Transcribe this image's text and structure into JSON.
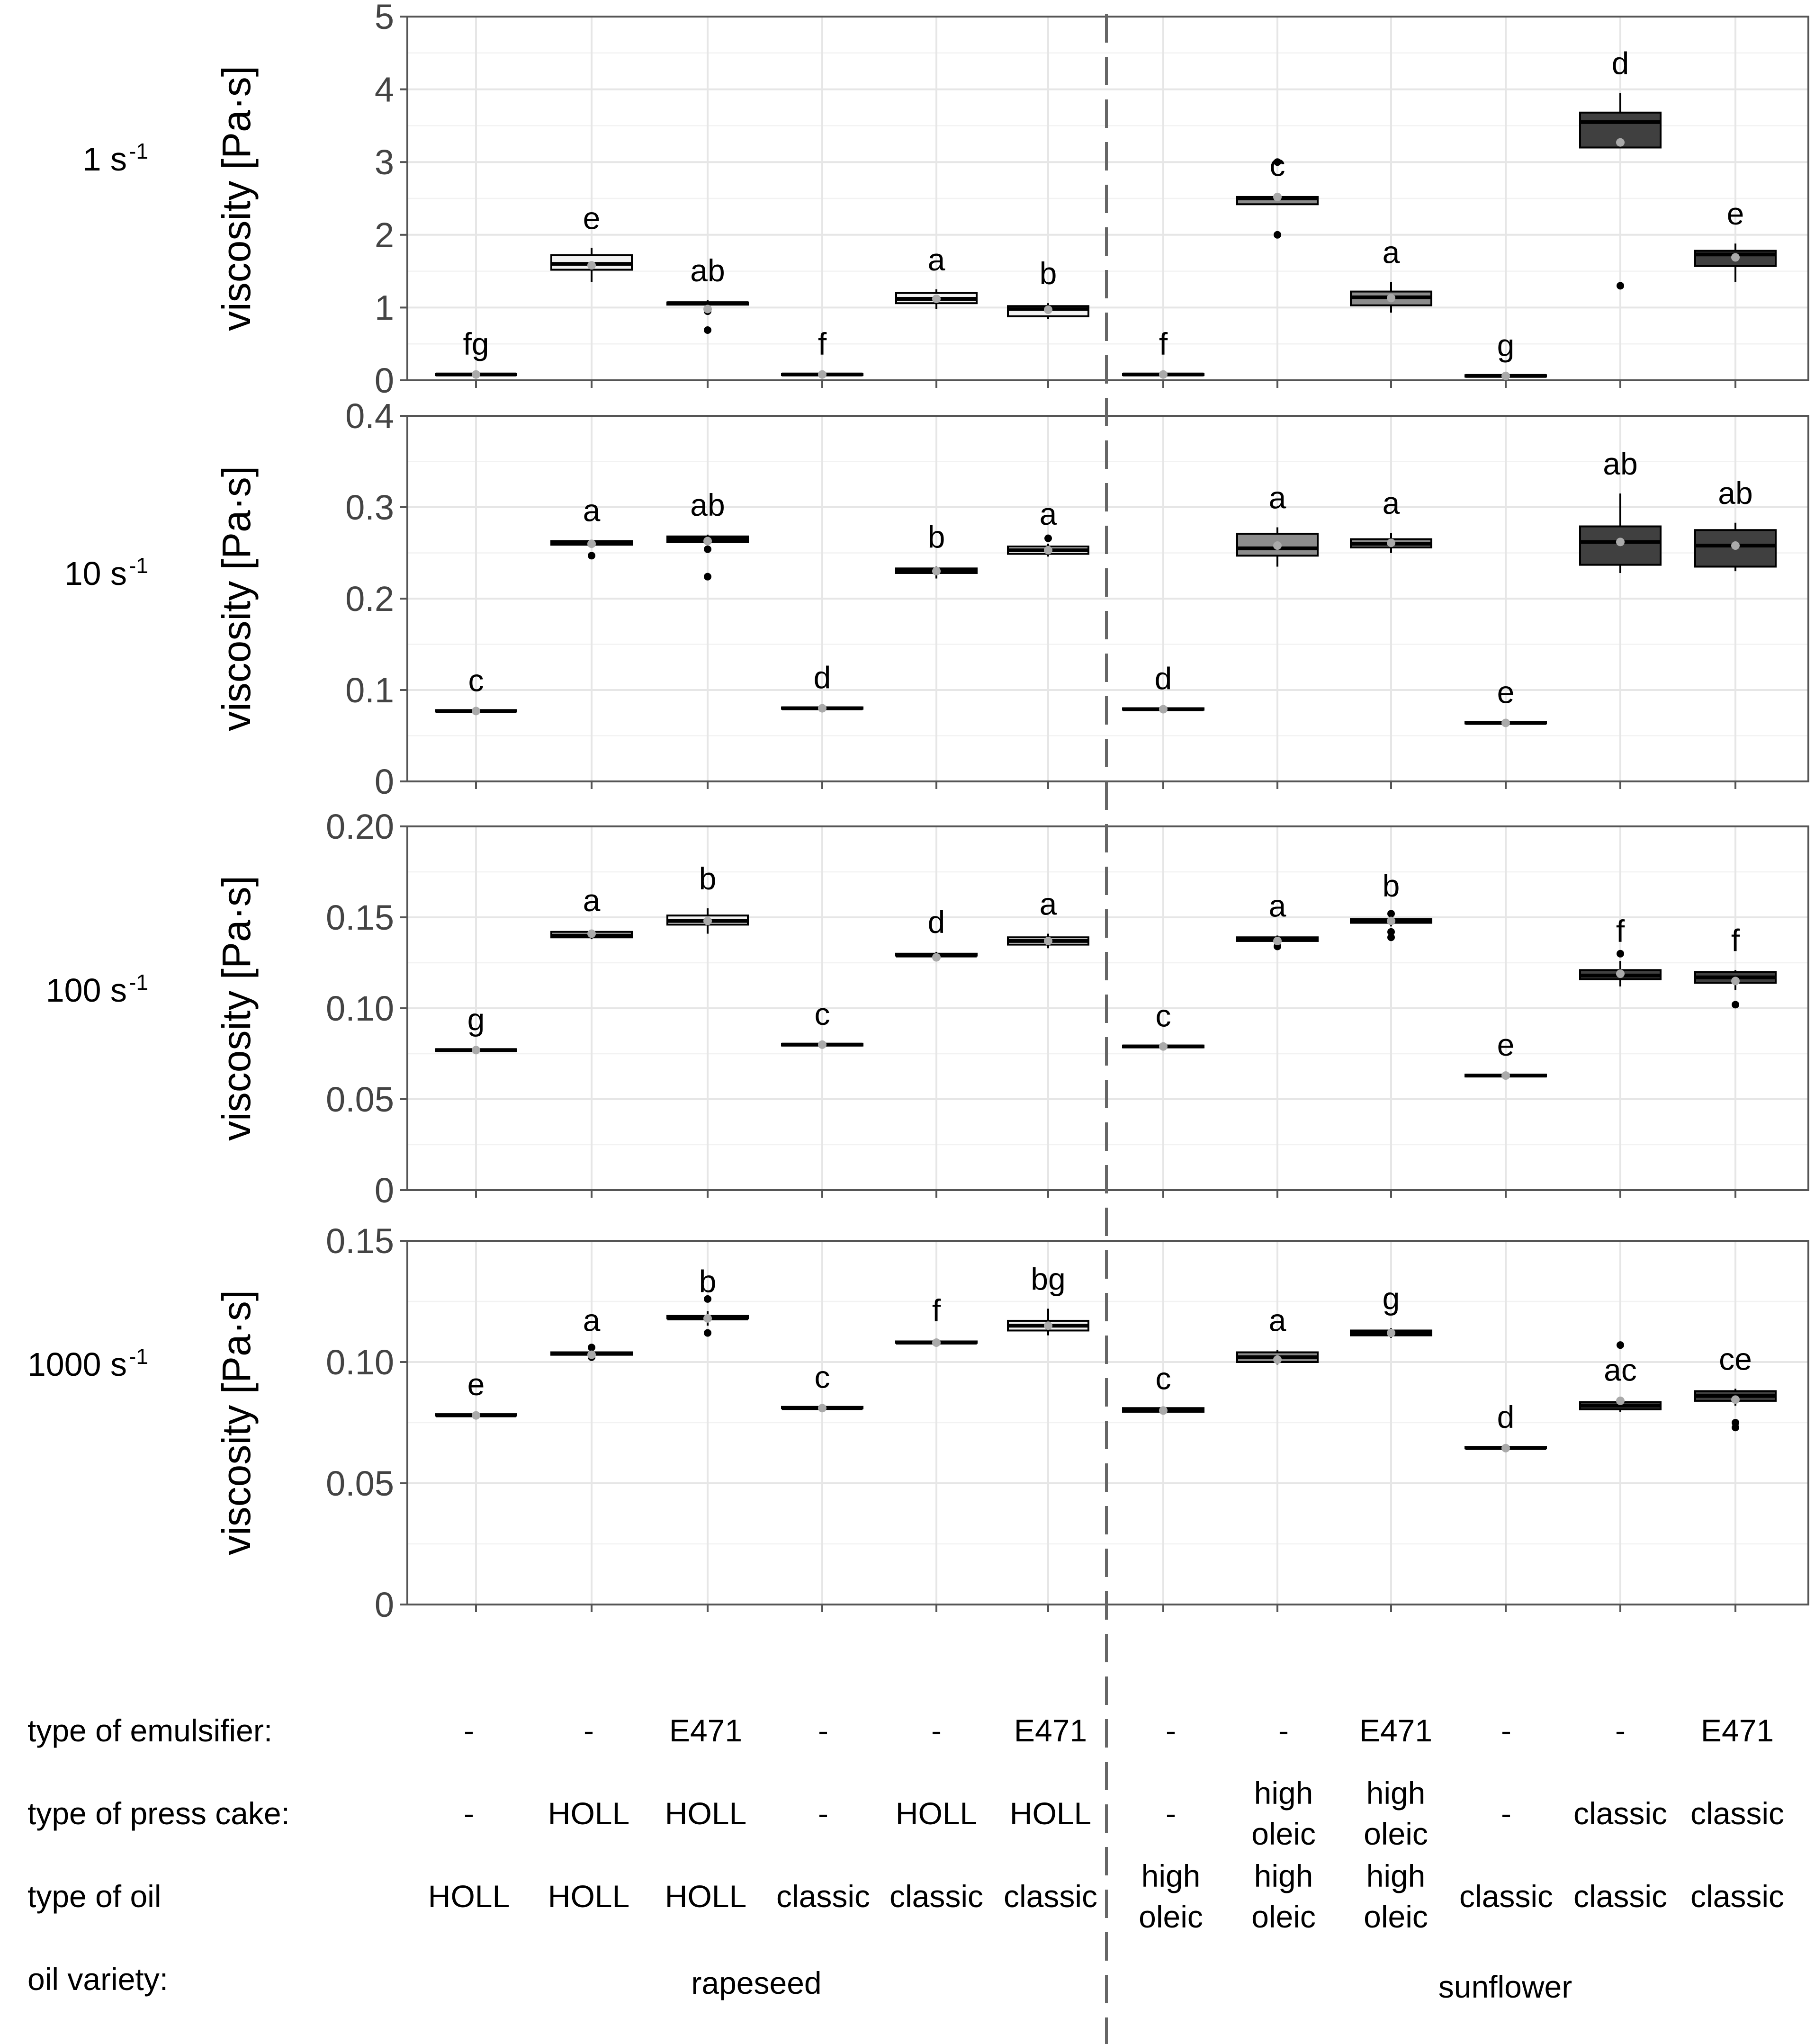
{
  "chart_data": {
    "type": "box",
    "ylabel": "viscosity [Pa·s]",
    "colors": {
      "rapeseed": "#f2f2f2",
      "sunflower_high_oleic": "#8c8c8c",
      "sunflower_classic": "#404040",
      "median_line": "#000000",
      "mean_point": "#aaaaaa"
    },
    "panels": [
      {
        "rate": "1 s",
        "rate_exp": "-1",
        "ylim": [
          0,
          5
        ],
        "yticks": [
          0,
          1,
          2,
          3,
          4,
          5
        ],
        "ytick_labels": [
          "0",
          "1",
          "2",
          "3",
          "4",
          "5"
        ],
        "groups": [
          {
            "q1": 0.08,
            "median": 0.08,
            "q3": 0.09,
            "wlo": 0.08,
            "whi": 0.09,
            "mean": 0.08,
            "outliers": [],
            "letter": "fg"
          },
          {
            "q1": 1.52,
            "median": 1.6,
            "q3": 1.72,
            "wlo": 1.35,
            "whi": 1.82,
            "mean": 1.58,
            "outliers": [],
            "letter": "e"
          },
          {
            "q1": 1.04,
            "median": 1.06,
            "q3": 1.07,
            "wlo": 1.0,
            "whi": 1.1,
            "mean": 0.98,
            "outliers": [
              0.95,
              0.69
            ],
            "letter": "ab"
          },
          {
            "q1": 0.08,
            "median": 0.08,
            "q3": 0.09,
            "wlo": 0.08,
            "whi": 0.09,
            "mean": 0.08,
            "outliers": [],
            "letter": "f"
          },
          {
            "q1": 1.06,
            "median": 1.12,
            "q3": 1.2,
            "wlo": 0.98,
            "whi": 1.25,
            "mean": 1.12,
            "outliers": [],
            "letter": "a"
          },
          {
            "q1": 0.88,
            "median": 0.98,
            "q3": 1.02,
            "wlo": 0.84,
            "whi": 1.06,
            "mean": 0.97,
            "outliers": [],
            "letter": "b"
          },
          {
            "q1": 0.08,
            "median": 0.08,
            "q3": 0.09,
            "wlo": 0.08,
            "whi": 0.09,
            "mean": 0.08,
            "outliers": [],
            "letter": "f"
          },
          {
            "q1": 2.42,
            "median": 2.5,
            "q3": 2.52,
            "wlo": 2.42,
            "whi": 2.55,
            "mean": 2.52,
            "outliers": [
              3.0,
              2.0
            ],
            "letter": "c"
          },
          {
            "q1": 1.03,
            "median": 1.14,
            "q3": 1.22,
            "wlo": 0.93,
            "whi": 1.35,
            "mean": 1.13,
            "outliers": [],
            "letter": "a"
          },
          {
            "q1": 0.06,
            "median": 0.06,
            "q3": 0.07,
            "wlo": 0.06,
            "whi": 0.07,
            "mean": 0.06,
            "outliers": [],
            "letter": "g"
          },
          {
            "q1": 3.2,
            "median": 3.55,
            "q3": 3.68,
            "wlo": 3.2,
            "whi": 3.95,
            "mean": 3.27,
            "outliers": [
              1.3
            ],
            "letter": "d"
          },
          {
            "q1": 1.57,
            "median": 1.73,
            "q3": 1.78,
            "wlo": 1.35,
            "whi": 1.88,
            "mean": 1.69,
            "outliers": [],
            "letter": "e"
          }
        ]
      },
      {
        "rate": "10 s",
        "rate_exp": "-1",
        "ylim": [
          0,
          0.4
        ],
        "yticks": [
          0,
          0.1,
          0.2,
          0.3,
          0.4
        ],
        "ytick_labels": [
          "0",
          "0.1",
          "0.2",
          "0.3",
          "0.4"
        ],
        "groups": [
          {
            "q1": 0.077,
            "median": 0.077,
            "q3": 0.078,
            "wlo": 0.077,
            "whi": 0.078,
            "mean": 0.077,
            "outliers": [],
            "letter": "c"
          },
          {
            "q1": 0.259,
            "median": 0.261,
            "q3": 0.263,
            "wlo": 0.257,
            "whi": 0.264,
            "mean": 0.26,
            "outliers": [
              0.247
            ],
            "letter": "a"
          },
          {
            "q1": 0.262,
            "median": 0.265,
            "q3": 0.268,
            "wlo": 0.26,
            "whi": 0.27,
            "mean": 0.263,
            "outliers": [
              0.254,
              0.224
            ],
            "letter": "ab"
          },
          {
            "q1": 0.08,
            "median": 0.08,
            "q3": 0.081,
            "wlo": 0.08,
            "whi": 0.081,
            "mean": 0.08,
            "outliers": [],
            "letter": "d"
          },
          {
            "q1": 0.228,
            "median": 0.231,
            "q3": 0.233,
            "wlo": 0.222,
            "whi": 0.235,
            "mean": 0.23,
            "outliers": [],
            "letter": "b"
          },
          {
            "q1": 0.249,
            "median": 0.253,
            "q3": 0.257,
            "wlo": 0.246,
            "whi": 0.26,
            "mean": 0.253,
            "outliers": [
              0.266
            ],
            "letter": "a"
          },
          {
            "q1": 0.079,
            "median": 0.079,
            "q3": 0.08,
            "wlo": 0.079,
            "whi": 0.08,
            "mean": 0.079,
            "outliers": [],
            "letter": "d"
          },
          {
            "q1": 0.247,
            "median": 0.255,
            "q3": 0.271,
            "wlo": 0.235,
            "whi": 0.278,
            "mean": 0.258,
            "outliers": [],
            "letter": "a"
          },
          {
            "q1": 0.256,
            "median": 0.26,
            "q3": 0.265,
            "wlo": 0.25,
            "whi": 0.272,
            "mean": 0.261,
            "outliers": [],
            "letter": "a"
          },
          {
            "q1": 0.064,
            "median": 0.064,
            "q3": 0.065,
            "wlo": 0.064,
            "whi": 0.065,
            "mean": 0.064,
            "outliers": [],
            "letter": "e"
          },
          {
            "q1": 0.237,
            "median": 0.262,
            "q3": 0.279,
            "wlo": 0.228,
            "whi": 0.315,
            "mean": 0.262,
            "outliers": [],
            "letter": "ab"
          },
          {
            "q1": 0.235,
            "median": 0.258,
            "q3": 0.275,
            "wlo": 0.23,
            "whi": 0.283,
            "mean": 0.258,
            "outliers": [],
            "letter": "ab"
          }
        ]
      },
      {
        "rate": "100 s",
        "rate_exp": "-1",
        "ylim": [
          0,
          0.2
        ],
        "yticks": [
          0,
          0.05,
          0.1,
          0.15,
          0.2
        ],
        "ytick_labels": [
          "0",
          "0.05",
          "0.10",
          "0.15",
          "0.20"
        ],
        "groups": [
          {
            "q1": 0.0765,
            "median": 0.077,
            "q3": 0.0775,
            "wlo": 0.0765,
            "whi": 0.0775,
            "mean": 0.077,
            "outliers": [],
            "letter": "g"
          },
          {
            "q1": 0.139,
            "median": 0.14,
            "q3": 0.142,
            "wlo": 0.138,
            "whi": 0.143,
            "mean": 0.141,
            "outliers": [],
            "letter": "a"
          },
          {
            "q1": 0.146,
            "median": 0.148,
            "q3": 0.151,
            "wlo": 0.141,
            "whi": 0.155,
            "mean": 0.148,
            "outliers": [],
            "letter": "b"
          },
          {
            "q1": 0.0795,
            "median": 0.08,
            "q3": 0.0805,
            "wlo": 0.0795,
            "whi": 0.0805,
            "mean": 0.08,
            "outliers": [],
            "letter": "c"
          },
          {
            "q1": 0.129,
            "median": 0.129,
            "q3": 0.13,
            "wlo": 0.126,
            "whi": 0.131,
            "mean": 0.128,
            "outliers": [],
            "letter": "d"
          },
          {
            "q1": 0.135,
            "median": 0.137,
            "q3": 0.139,
            "wlo": 0.133,
            "whi": 0.141,
            "mean": 0.137,
            "outliers": [],
            "letter": "a"
          },
          {
            "q1": 0.0785,
            "median": 0.079,
            "q3": 0.0795,
            "wlo": 0.0785,
            "whi": 0.0795,
            "mean": 0.079,
            "outliers": [],
            "letter": "c"
          },
          {
            "q1": 0.137,
            "median": 0.138,
            "q3": 0.139,
            "wlo": 0.135,
            "whi": 0.14,
            "mean": 0.137,
            "outliers": [
              0.134
            ],
            "letter": "a"
          },
          {
            "q1": 0.147,
            "median": 0.148,
            "q3": 0.149,
            "wlo": 0.145,
            "whi": 0.151,
            "mean": 0.148,
            "outliers": [
              0.152,
              0.142,
              0.139
            ],
            "letter": "b"
          },
          {
            "q1": 0.0625,
            "median": 0.063,
            "q3": 0.0635,
            "wlo": 0.0625,
            "whi": 0.0635,
            "mean": 0.063,
            "outliers": [],
            "letter": "e"
          },
          {
            "q1": 0.116,
            "median": 0.118,
            "q3": 0.121,
            "wlo": 0.112,
            "whi": 0.126,
            "mean": 0.119,
            "outliers": [
              0.13
            ],
            "letter": "f"
          },
          {
            "q1": 0.114,
            "median": 0.117,
            "q3": 0.12,
            "wlo": 0.11,
            "whi": 0.121,
            "mean": 0.115,
            "outliers": [
              0.102
            ],
            "letter": "f"
          }
        ]
      },
      {
        "rate": "1000 s",
        "rate_exp": "-1",
        "ylim": [
          0,
          0.15
        ],
        "yticks": [
          0,
          0.05,
          0.1,
          0.15
        ],
        "ytick_labels": [
          "0",
          "0.05",
          "0.10",
          "0.15"
        ],
        "groups": [
          {
            "q1": 0.078,
            "median": 0.078,
            "q3": 0.0785,
            "wlo": 0.078,
            "whi": 0.0785,
            "mean": 0.078,
            "outliers": [],
            "letter": "e"
          },
          {
            "q1": 0.103,
            "median": 0.1035,
            "q3": 0.104,
            "wlo": 0.102,
            "whi": 0.105,
            "mean": 0.103,
            "outliers": [
              0.106,
              0.102
            ],
            "letter": "a"
          },
          {
            "q1": 0.118,
            "median": 0.118,
            "q3": 0.119,
            "wlo": 0.115,
            "whi": 0.121,
            "mean": 0.118,
            "outliers": [
              0.126,
              0.112
            ],
            "letter": "b"
          },
          {
            "q1": 0.081,
            "median": 0.081,
            "q3": 0.0815,
            "wlo": 0.081,
            "whi": 0.0815,
            "mean": 0.081,
            "outliers": [],
            "letter": "c"
          },
          {
            "q1": 0.108,
            "median": 0.108,
            "q3": 0.1085,
            "wlo": 0.1075,
            "whi": 0.109,
            "mean": 0.108,
            "outliers": [],
            "letter": "f"
          },
          {
            "q1": 0.113,
            "median": 0.115,
            "q3": 0.117,
            "wlo": 0.111,
            "whi": 0.122,
            "mean": 0.115,
            "outliers": [],
            "letter": "bg"
          },
          {
            "q1": 0.0795,
            "median": 0.08,
            "q3": 0.081,
            "wlo": 0.0795,
            "whi": 0.081,
            "mean": 0.08,
            "outliers": [],
            "letter": "c"
          },
          {
            "q1": 0.1,
            "median": 0.102,
            "q3": 0.104,
            "wlo": 0.099,
            "whi": 0.105,
            "mean": 0.101,
            "outliers": [],
            "letter": "a"
          },
          {
            "q1": 0.111,
            "median": 0.112,
            "q3": 0.113,
            "wlo": 0.11,
            "whi": 0.114,
            "mean": 0.112,
            "outliers": [],
            "letter": "g"
          },
          {
            "q1": 0.0645,
            "median": 0.0645,
            "q3": 0.065,
            "wlo": 0.0645,
            "whi": 0.065,
            "mean": 0.0645,
            "outliers": [],
            "letter": "d"
          },
          {
            "q1": 0.0805,
            "median": 0.082,
            "q3": 0.0835,
            "wlo": 0.0795,
            "whi": 0.0845,
            "mean": 0.084,
            "outliers": [
              0.107
            ],
            "letter": "ac"
          },
          {
            "q1": 0.084,
            "median": 0.086,
            "q3": 0.088,
            "wlo": 0.082,
            "whi": 0.089,
            "mean": 0.0845,
            "outliers": [
              0.075,
              0.073
            ],
            "letter": "ce"
          }
        ]
      }
    ],
    "table": {
      "row_labels": {
        "emulsifier": "type of emulsifier:",
        "press_cake": "type of press cake:",
        "oil": "type of oil",
        "variety": "oil variety:"
      },
      "emulsifier": [
        "-",
        "-",
        "E471",
        "-",
        "-",
        "E471",
        "-",
        "-",
        "E471",
        "-",
        "-",
        "E471"
      ],
      "press_cake": [
        [
          "-"
        ],
        [
          "HOLL"
        ],
        [
          "HOLL"
        ],
        [
          "-"
        ],
        [
          "HOLL"
        ],
        [
          "HOLL"
        ],
        [
          "-"
        ],
        [
          "high",
          "oleic"
        ],
        [
          "high",
          "oleic"
        ],
        [
          "-"
        ],
        [
          "classic"
        ],
        [
          "classic"
        ]
      ],
      "oil": [
        [
          "HOLL"
        ],
        [
          "HOLL"
        ],
        [
          "HOLL"
        ],
        [
          "classic"
        ],
        [
          "classic"
        ],
        [
          "classic"
        ],
        [
          "high",
          "oleic"
        ],
        [
          "high",
          "oleic"
        ],
        [
          "high",
          "oleic"
        ],
        [
          "classic"
        ],
        [
          "classic"
        ],
        [
          "classic"
        ]
      ],
      "variety": [
        "rapeseed",
        "sunflower"
      ]
    }
  }
}
